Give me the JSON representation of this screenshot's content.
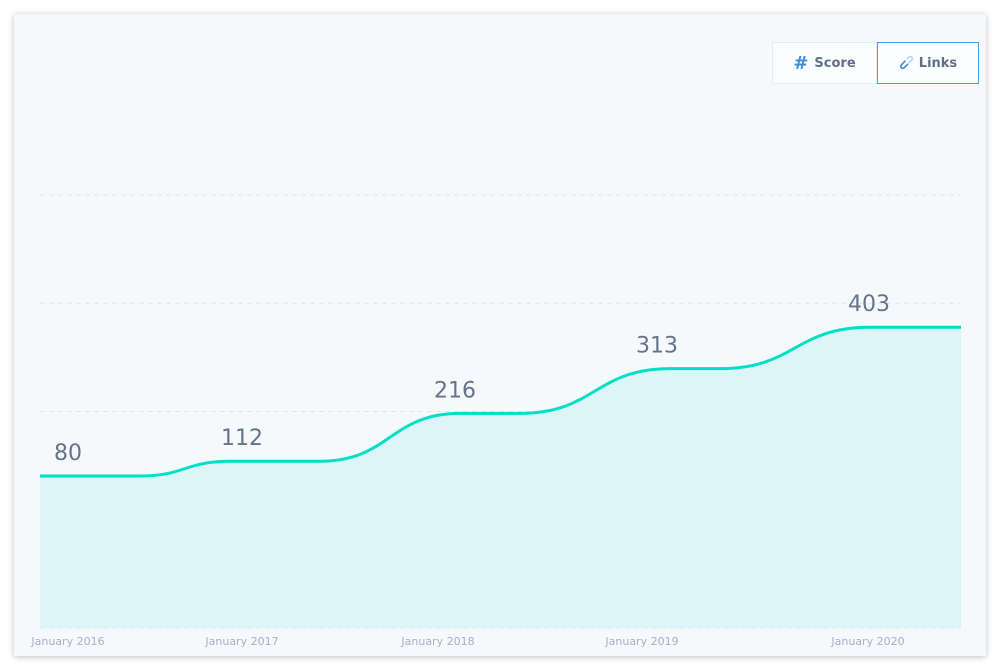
{
  "toggles": {
    "score_label": "Score",
    "links_label": "Links",
    "selected": "Links",
    "score_icon": "hash-icon",
    "links_icon": "link-icon",
    "accent": "#4aa3df"
  },
  "chart_data": {
    "type": "area",
    "title": "",
    "xlabel": "",
    "ylabel": "",
    "categories": [
      "January 2016",
      "January 2017",
      "January 2018",
      "January 2019",
      "January 2020"
    ],
    "values": [
      80,
      112,
      216,
      313,
      403
    ],
    "data_labels": [
      "80",
      "112",
      "216",
      "313",
      "403"
    ],
    "ylim": [
      -250,
      690
    ],
    "grid": true,
    "legend": "none",
    "line_color": "#00e0c6",
    "fill_color": "#dcf6f7"
  }
}
